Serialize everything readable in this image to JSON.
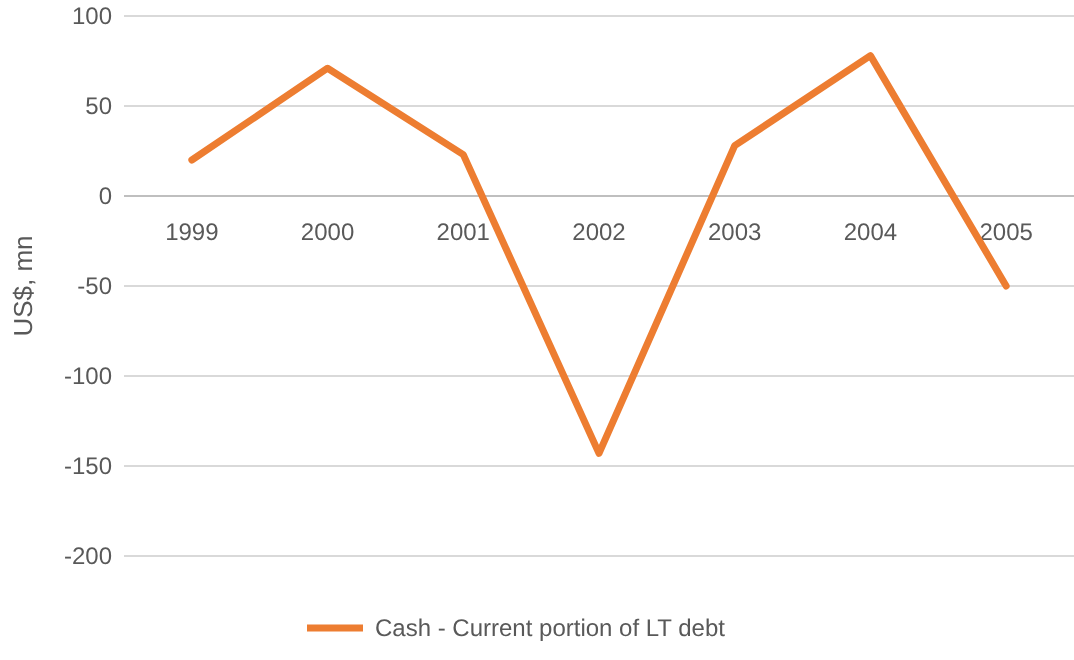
{
  "chart_data": {
    "type": "line",
    "ylabel": "US$, mn",
    "categories": [
      "1999",
      "2000",
      "2001",
      "2002",
      "2003",
      "2004",
      "2005"
    ],
    "series": [
      {
        "name": "Cash - Current portion of LT debt",
        "color": "#ed7d31",
        "values": [
          20,
          71,
          23,
          -143,
          28,
          78,
          -50
        ]
      }
    ],
    "ylim": [
      -200,
      100
    ],
    "yticks": [
      -200,
      -150,
      -100,
      -50,
      0,
      50,
      100
    ],
    "grid": "y",
    "legend": "bottom",
    "marker": "none",
    "line_style": "solid"
  }
}
